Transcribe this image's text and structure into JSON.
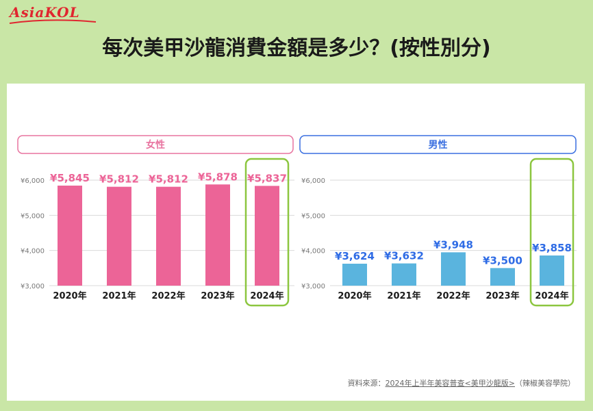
{
  "logo": {
    "text": "AsiaKOL"
  },
  "title": "每次美甲沙龍消費金額是多少？(按性別分)",
  "chart_data": [
    {
      "type": "bar",
      "title": "女性",
      "categories": [
        "2020年",
        "2021年",
        "2022年",
        "2023年",
        "2024年"
      ],
      "values": [
        5845,
        5812,
        5812,
        5878,
        5837
      ],
      "value_labels": [
        "¥5,845",
        "¥5,812",
        "¥5,812",
        "¥5,878",
        "¥5,837"
      ],
      "yticks": [
        "¥3,000",
        "¥4,000",
        "¥5,000",
        "¥6,000"
      ],
      "ylim": [
        3000,
        6000
      ],
      "bar_color": "#ec6497",
      "label_color": "#ec6497",
      "header_border": "#e8739f",
      "highlight_index": 4,
      "highlight_color": "#8cc63f",
      "grid": true
    },
    {
      "type": "bar",
      "title": "男性",
      "categories": [
        "2020年",
        "2021年",
        "2022年",
        "2023年",
        "2024年"
      ],
      "values": [
        3624,
        3632,
        3948,
        3500,
        3858
      ],
      "value_labels": [
        "¥3,624",
        "¥3,632",
        "¥3,948",
        "¥3,500",
        "¥3,858"
      ],
      "yticks": [
        "¥3,000",
        "¥4,000",
        "¥5,000",
        "¥6,000"
      ],
      "ylim": [
        3000,
        6000
      ],
      "bar_color": "#5ab4de",
      "label_color": "#2f6ce5",
      "header_border": "#3a6fe0",
      "highlight_index": 4,
      "highlight_color": "#8cc63f",
      "grid": true
    }
  ],
  "source": {
    "prefix": "資料來源：",
    "link": "2024年上半年美容普查<美甲沙龍版>",
    "suffix": "（辣椒美容學院）"
  }
}
